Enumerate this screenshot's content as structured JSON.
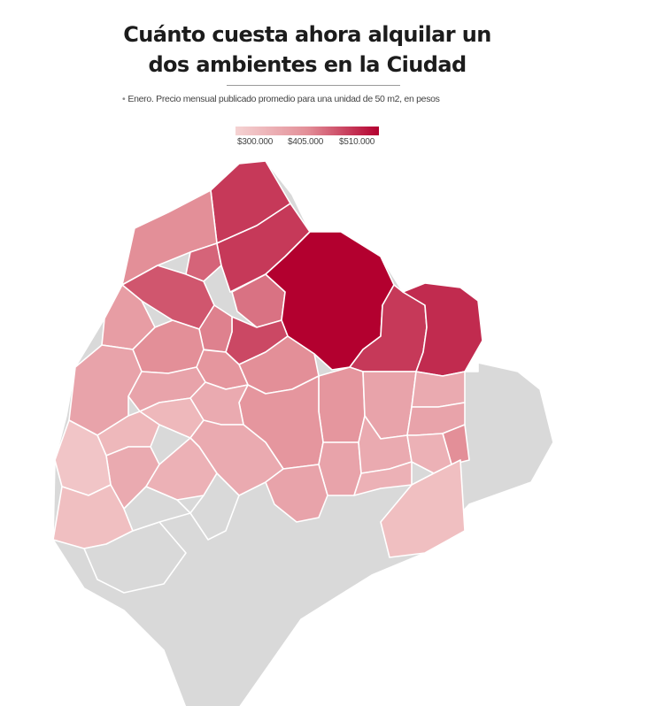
{
  "header": {
    "title_line1": "Cuánto cuesta ahora alquilar un",
    "title_line2": "dos ambientes en la Ciudad",
    "bullet": "•",
    "subtitle": "Enero. Precio mensual publicado promedio para una unidad de 50 m2, en pesos"
  },
  "legend": {
    "min_label": "$300.000",
    "mid_label": "$405.000",
    "max_label": "$510.000",
    "color_low": "#f5d3d3",
    "color_mid": "#e38f98",
    "color_high": "#b3002f",
    "color_no_data": "#d9d9d9"
  },
  "map": {
    "region_levels": {
      "nunez": 0.8,
      "saavedra": 0.5,
      "coghlan": 0.65,
      "belgrano": 0.8,
      "villa-urquiza": 0.7,
      "villa-pueyrredon": 0.4,
      "colegiales": 0.6,
      "palermo": 1.0,
      "chacarita": 0.75,
      "villa-ortuzar": 0.55,
      "recoleta": 0.8,
      "retiro": 0.85,
      "villa-crespo": 0.5,
      "paternal": 0.45,
      "agronomia": 0.5,
      "villa-devoto": 0.35,
      "almagro": 0.45,
      "balvanera": 0.35,
      "san-nicolas": 0.3,
      "caballito": 0.45,
      "villa-santa-rita": 0.35,
      "floresta": 0.3,
      "villa-luro": 0.2,
      "monte-castro": 0.2,
      "flores": 0.3,
      "boedo": 0.35,
      "san-cristobal": 0.3,
      "monserrat": 0.35,
      "san-telmo": 0.5,
      "parque-chacabuco": 0.35,
      "parque-patricios": 0.25,
      "barracas": 0.15,
      "constitucion": 0.25,
      "velez-sarsfield": 0.3,
      "liniers": 0.1,
      "mataderos": 0.15,
      "villa-general-mitre": 0.25,
      "boca": 0.0,
      "puerto-madero": 0.0,
      "pompeya": 0.0,
      "villa-soldati": 0.0,
      "villa-lugano": 0.0,
      "villa-riachuelo": 0.0,
      "parque-avellaneda": 0.0,
      "villa-real": 0.0,
      "versalles": 0.0
    }
  }
}
